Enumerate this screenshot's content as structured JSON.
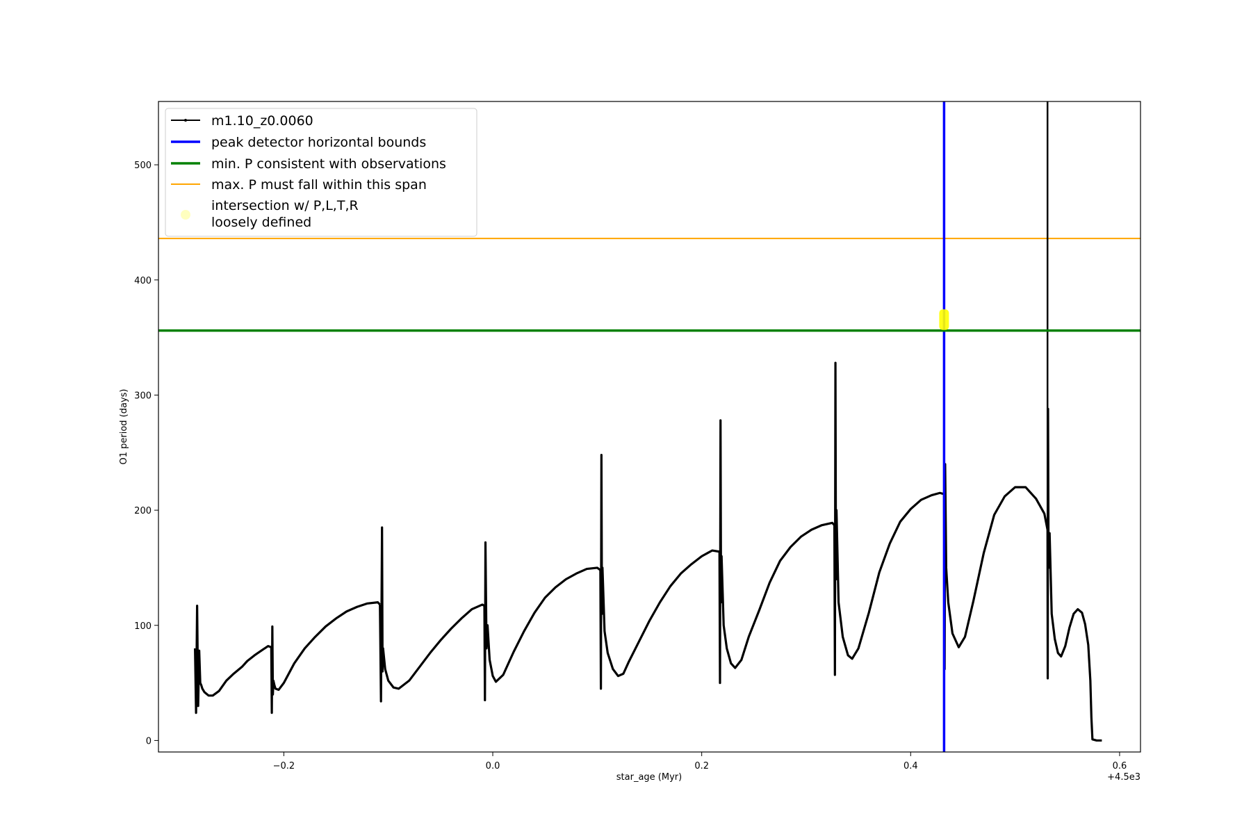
{
  "chart_data": {
    "type": "line",
    "xlabel": "star_age (Myr)",
    "ylabel": "O1 period (days)",
    "x_offset_label": "+4.5e3",
    "xlim": [
      -0.32,
      0.62
    ],
    "ylim": [
      -10,
      555
    ],
    "xticks": [
      -0.2,
      0.0,
      0.2,
      0.4,
      0.6
    ],
    "xtick_labels": [
      "−0.2",
      "0.0",
      "0.2",
      "0.4",
      "0.6"
    ],
    "yticks": [
      0,
      100,
      200,
      300,
      400,
      500
    ],
    "ytick_labels": [
      "0",
      "100",
      "200",
      "300",
      "400",
      "500"
    ],
    "grid": false,
    "legend_position": "upper-left",
    "colors": {
      "track": "#000000",
      "peak_bounds": "#0000ff",
      "min_p": "#008000",
      "max_p": "#ffa500",
      "intersection": "#ffff00"
    },
    "series": [
      {
        "name": "m1.10_z0.0060",
        "kind": "line-marker",
        "segments": [
          [
            [
              -0.285,
              80
            ],
            [
              -0.284,
              24
            ],
            [
              -0.283,
              117
            ],
            [
              -0.282,
              30
            ],
            [
              -0.281,
              78
            ],
            [
              -0.28,
              50
            ],
            [
              -0.279,
              48
            ],
            [
              -0.278,
              45
            ],
            [
              -0.276,
              42
            ],
            [
              -0.272,
              39
            ],
            [
              -0.268,
              39
            ],
            [
              -0.262,
              43
            ],
            [
              -0.255,
              52
            ],
            [
              -0.248,
              58
            ],
            [
              -0.24,
              64
            ],
            [
              -0.235,
              69
            ],
            [
              -0.228,
              74
            ],
            [
              -0.22,
              79
            ],
            [
              -0.215,
              82
            ],
            [
              -0.212,
              81
            ]
          ],
          [
            [
              -0.212,
              81
            ],
            [
              -0.2115,
              24
            ],
            [
              -0.211,
              99
            ],
            [
              -0.2105,
              40
            ],
            [
              -0.21,
              52
            ],
            [
              -0.209,
              48
            ],
            [
              -0.208,
              45
            ],
            [
              -0.205,
              44
            ],
            [
              -0.2,
              50
            ],
            [
              -0.19,
              67
            ],
            [
              -0.18,
              80
            ],
            [
              -0.17,
              90
            ],
            [
              -0.16,
              99
            ],
            [
              -0.15,
              106
            ],
            [
              -0.14,
              112
            ],
            [
              -0.13,
              116
            ],
            [
              -0.12,
              119
            ],
            [
              -0.11,
              120
            ],
            [
              -0.108,
              118
            ]
          ],
          [
            [
              -0.108,
              118
            ],
            [
              -0.107,
              34
            ],
            [
              -0.106,
              185
            ],
            [
              -0.1055,
              60
            ],
            [
              -0.105,
              80
            ],
            [
              -0.103,
              62
            ],
            [
              -0.1,
              52
            ],
            [
              -0.095,
              46
            ],
            [
              -0.09,
              45
            ],
            [
              -0.08,
              52
            ],
            [
              -0.07,
              64
            ],
            [
              -0.06,
              76
            ],
            [
              -0.05,
              87
            ],
            [
              -0.04,
              97
            ],
            [
              -0.03,
              106
            ],
            [
              -0.02,
              114
            ],
            [
              -0.01,
              118
            ],
            [
              -0.008,
              117
            ]
          ],
          [
            [
              -0.008,
              117
            ],
            [
              -0.0075,
              35
            ],
            [
              -0.007,
              172
            ],
            [
              -0.006,
              80
            ],
            [
              -0.005,
              100
            ],
            [
              -0.003,
              70
            ],
            [
              0.0,
              56
            ],
            [
              0.003,
              51
            ],
            [
              0.01,
              57
            ],
            [
              0.02,
              77
            ],
            [
              0.03,
              95
            ],
            [
              0.04,
              111
            ],
            [
              0.05,
              124
            ],
            [
              0.06,
              133
            ],
            [
              0.07,
              140
            ],
            [
              0.08,
              145
            ],
            [
              0.09,
              149
            ],
            [
              0.1,
              150
            ],
            [
              0.103,
              148
            ]
          ],
          [
            [
              0.103,
              148
            ],
            [
              0.1035,
              45
            ],
            [
              0.104,
              248
            ],
            [
              0.1045,
              110
            ],
            [
              0.105,
              150
            ],
            [
              0.107,
              95
            ],
            [
              0.11,
              76
            ],
            [
              0.115,
              62
            ],
            [
              0.12,
              56
            ],
            [
              0.125,
              58
            ],
            [
              0.13,
              68
            ],
            [
              0.14,
              86
            ],
            [
              0.15,
              104
            ],
            [
              0.16,
              120
            ],
            [
              0.17,
              134
            ],
            [
              0.18,
              145
            ],
            [
              0.19,
              153
            ],
            [
              0.2,
              160
            ],
            [
              0.21,
              165
            ],
            [
              0.217,
              164
            ]
          ],
          [
            [
              0.217,
              164
            ],
            [
              0.2175,
              50
            ],
            [
              0.218,
              278
            ],
            [
              0.2185,
              120
            ],
            [
              0.219,
              160
            ],
            [
              0.221,
              100
            ],
            [
              0.224,
              80
            ],
            [
              0.228,
              67
            ],
            [
              0.232,
              63
            ],
            [
              0.238,
              70
            ],
            [
              0.245,
              90
            ],
            [
              0.255,
              113
            ],
            [
              0.265,
              137
            ],
            [
              0.275,
              156
            ],
            [
              0.285,
              168
            ],
            [
              0.295,
              177
            ],
            [
              0.305,
              183
            ],
            [
              0.315,
              187
            ],
            [
              0.325,
              189
            ],
            [
              0.327,
              187
            ]
          ],
          [
            [
              0.327,
              187
            ],
            [
              0.3275,
              57
            ],
            [
              0.328,
              328
            ],
            [
              0.3285,
              140
            ],
            [
              0.329,
              200
            ],
            [
              0.331,
              120
            ],
            [
              0.335,
              90
            ],
            [
              0.34,
              74
            ],
            [
              0.344,
              71
            ],
            [
              0.35,
              80
            ],
            [
              0.36,
              111
            ],
            [
              0.37,
              146
            ],
            [
              0.38,
              171
            ],
            [
              0.39,
              190
            ],
            [
              0.4,
              201
            ],
            [
              0.41,
              209
            ],
            [
              0.42,
              213
            ],
            [
              0.428,
              215
            ],
            [
              0.432,
              214
            ]
          ],
          [
            [
              0.432,
              214
            ],
            [
              0.4325,
              62
            ],
            [
              0.433,
              240
            ],
            [
              0.434,
              150
            ],
            [
              0.436,
              120
            ],
            [
              0.44,
              93
            ],
            [
              0.446,
              81
            ],
            [
              0.452,
              90
            ],
            [
              0.46,
              121
            ],
            [
              0.47,
              163
            ],
            [
              0.48,
              196
            ],
            [
              0.49,
              212
            ],
            [
              0.5,
              220
            ],
            [
              0.51,
              220
            ],
            [
              0.52,
              210
            ],
            [
              0.528,
              197
            ],
            [
              0.531,
              183
            ]
          ],
          [
            [
              0.531,
              183
            ],
            [
              0.5312,
              54
            ],
            [
              0.5315,
              288
            ],
            [
              0.532,
              150
            ],
            [
              0.533,
              180
            ],
            [
              0.535,
              110
            ],
            [
              0.538,
              88
            ],
            [
              0.541,
              76
            ],
            [
              0.544,
              73
            ],
            [
              0.548,
              82
            ],
            [
              0.552,
              98
            ],
            [
              0.556,
              110
            ],
            [
              0.56,
              114
            ],
            [
              0.564,
              111
            ],
            [
              0.567,
              101
            ],
            [
              0.57,
              83
            ],
            [
              0.572,
              52
            ],
            [
              0.573,
              20
            ],
            [
              0.574,
              1
            ],
            [
              0.578,
              0
            ],
            [
              0.583,
              0
            ]
          ]
        ]
      },
      {
        "name": "peak detector horizontal bounds",
        "kind": "vline",
        "x": 0.432
      },
      {
        "name": "min. P consistent with observations",
        "kind": "hline",
        "y": 356
      },
      {
        "name": "max. P must fall within this span",
        "kind": "hline",
        "y": 436
      },
      {
        "name": "intersection w/ P,L,T,R\nloosely defined",
        "kind": "highlight",
        "x": 0.432,
        "y_range": [
          359,
          372
        ]
      }
    ],
    "extra_lines": [
      {
        "kind": "vline",
        "x": 0.531,
        "y_range": [
          183,
          555
        ],
        "color": "#000000"
      }
    ],
    "legend": [
      "m1.10_z0.0060",
      "peak detector horizontal bounds",
      "min. P consistent with observations",
      "max. P must fall within this span",
      "intersection w/ P,L,T,R",
      "loosely defined"
    ]
  }
}
